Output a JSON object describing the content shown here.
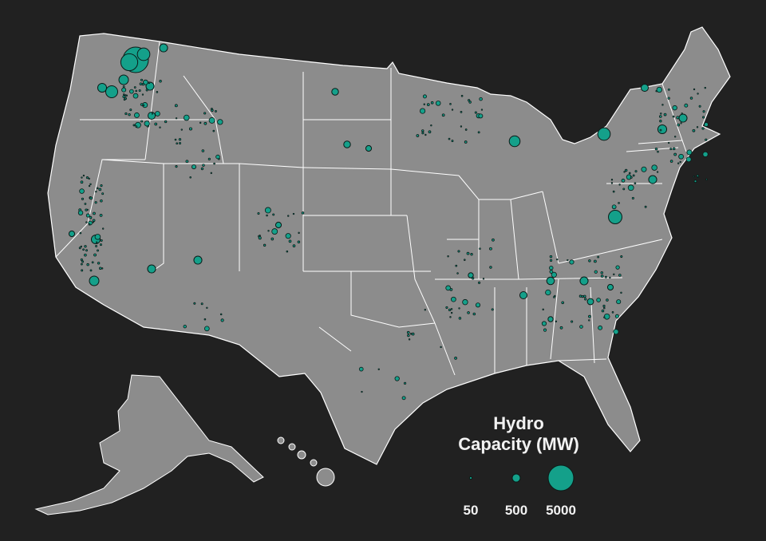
{
  "legend": {
    "title_line1": "Hydro",
    "title_line2": "Capacity (MW)",
    "items": [
      {
        "label": "50",
        "value": 50
      },
      {
        "label": "500",
        "value": 500
      },
      {
        "label": "5000",
        "value": 5000
      }
    ]
  },
  "colors": {
    "background": "#212121",
    "land": "#8c8c8c",
    "borders": "#ffffff",
    "plant_fill": "#14a08a",
    "plant_stroke": "#0b1a17"
  }
}
